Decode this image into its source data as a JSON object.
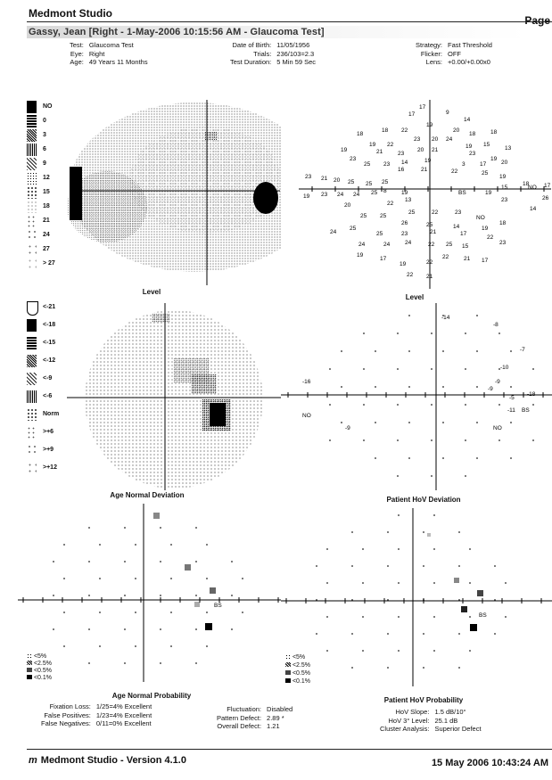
{
  "header": {
    "app": "Medmont Studio",
    "page": "Page",
    "title": "Gassy, Jean [Right - 1-May-2006 10:15:56 AM - Glaucoma Test]"
  },
  "info": {
    "test_label": "Test:",
    "test": "Glaucoma Test",
    "eye_label": "Eye:",
    "eye": "Right",
    "age_label": "Age:",
    "age": "49 Years 11 Months",
    "dob_label": "Date of Birth:",
    "dob": "11/05/1956",
    "trials_label": "Trials:",
    "trials": "236/103=2.3",
    "duration_label": "Test Duration:",
    "duration": "5 Min 59 Sec",
    "strategy_label": "Strategy:",
    "strategy": "Fast Threshold",
    "flicker_label": "Flicker:",
    "flicker": "OFF",
    "lens_label": "Lens:",
    "lens": "+0.00/+0.00x0"
  },
  "legend_sensitivity": [
    "NO",
    "0",
    "3",
    "6",
    "9",
    "12",
    "15",
    "18",
    "21",
    "24",
    "27",
    "> 27"
  ],
  "legend_level": [
    "<-21",
    "<-18",
    "<-15",
    "<-12",
    "<-9",
    "<-6",
    "Norm",
    ">+6",
    ">+9",
    ">+12"
  ],
  "legend_probability": [
    "<5%",
    "<2.5%",
    "<0.5%",
    "<0.1%"
  ],
  "labels": {
    "level_left": "Level",
    "level_right": "Level",
    "age_norm_dev": "Age Normal Deviation",
    "hov_dev": "Patient HoV Deviation",
    "age_norm_prob": "Age Normal Probability",
    "hov_prob": "Patient HoV Probability",
    "bs": "BS",
    "no": "NO"
  },
  "sensitivity_values": [
    {
      "v": "17"
    },
    {
      "v": "9"
    },
    {
      "v": "17"
    },
    {
      "v": "14"
    },
    {
      "v": "18"
    },
    {
      "v": "18"
    },
    {
      "v": "22"
    },
    {
      "v": "19"
    },
    {
      "v": "20"
    },
    {
      "v": "18"
    },
    {
      "v": "18"
    },
    {
      "v": "19"
    },
    {
      "v": "22"
    },
    {
      "v": "23"
    },
    {
      "v": "20"
    },
    {
      "v": "24"
    },
    {
      "v": "19"
    },
    {
      "v": "15"
    },
    {
      "v": "13"
    },
    {
      "v": "19"
    },
    {
      "v": "23"
    },
    {
      "v": "21"
    },
    {
      "v": "23"
    },
    {
      "v": "20"
    },
    {
      "v": "21"
    },
    {
      "v": "23"
    },
    {
      "v": "19"
    },
    {
      "v": "25"
    },
    {
      "v": "23"
    },
    {
      "v": "14"
    },
    {
      "v": "19"
    },
    {
      "v": "3"
    },
    {
      "v": "17"
    },
    {
      "v": "20"
    },
    {
      "v": "23"
    },
    {
      "v": "21"
    },
    {
      "v": "20"
    },
    {
      "v": "25"
    },
    {
      "v": "25"
    },
    {
      "v": "25"
    },
    {
      "v": "16"
    },
    {
      "v": "21"
    },
    {
      "v": "22"
    },
    {
      "v": "25"
    },
    {
      "v": "19"
    },
    {
      "v": "8"
    },
    {
      "v": "19"
    },
    {
      "v": "15"
    },
    {
      "v": "NO"
    },
    {
      "v": "17"
    },
    {
      "v": "18"
    },
    {
      "v": "19"
    },
    {
      "v": "23"
    },
    {
      "v": "24"
    },
    {
      "v": "24"
    },
    {
      "v": "25"
    },
    {
      "v": "22"
    },
    {
      "v": "13"
    },
    {
      "v": "BS"
    },
    {
      "v": "19"
    },
    {
      "v": "23"
    },
    {
      "v": "26"
    },
    {
      "v": "25"
    },
    {
      "v": "22"
    },
    {
      "v": "23"
    },
    {
      "v": "NO"
    },
    {
      "v": "18"
    },
    {
      "v": "14"
    },
    {
      "v": "20"
    },
    {
      "v": "25"
    },
    {
      "v": "25"
    },
    {
      "v": "26"
    },
    {
      "v": "25"
    },
    {
      "v": "14"
    },
    {
      "v": "19"
    },
    {
      "v": "24"
    },
    {
      "v": "25"
    },
    {
      "v": "25"
    },
    {
      "v": "23"
    },
    {
      "v": "21"
    },
    {
      "v": "17"
    },
    {
      "v": "22"
    },
    {
      "v": "24"
    },
    {
      "v": "24"
    },
    {
      "v": "24"
    },
    {
      "v": "22"
    },
    {
      "v": "25"
    },
    {
      "v": "15"
    },
    {
      "v": "23"
    },
    {
      "v": "19"
    },
    {
      "v": "17"
    },
    {
      "v": "19"
    },
    {
      "v": "22"
    },
    {
      "v": "22"
    },
    {
      "v": "21"
    },
    {
      "v": "17"
    },
    {
      "v": "22"
    },
    {
      "v": "21"
    }
  ],
  "level_values": [
    "-14",
    "-8",
    "-7",
    "-10",
    "-9",
    "-16",
    "-9",
    "-5",
    "-18",
    "-11",
    "-9"
  ],
  "stats": {
    "fix_loss_label": "Fixation Loss:",
    "fix_loss": "1/25=4% Excellent",
    "false_pos_label": "False Positives:",
    "false_pos": "1/23=4% Excellent",
    "false_neg_label": "False Negatives:",
    "false_neg": "0/11=0% Excellent",
    "fluct_label": "Fluctuation:",
    "fluct": "Disabled",
    "pattern_label": "Pattern Defect:",
    "pattern": "2.89 *",
    "overall_label": "Overall Defect:",
    "overall": "1.21",
    "hov_slope_label": "HoV Slope:",
    "hov_slope": "1.5 dB/10°",
    "hov3_label": "HoV 3° Level:",
    "hov3": "25.1 dB",
    "cluster_label": "Cluster Analysis:",
    "cluster": "Superior Defect"
  },
  "footer": {
    "app": "Medmont Studio - Version 4.1.0",
    "date": "15 May 2006 10:43:24 AM"
  }
}
